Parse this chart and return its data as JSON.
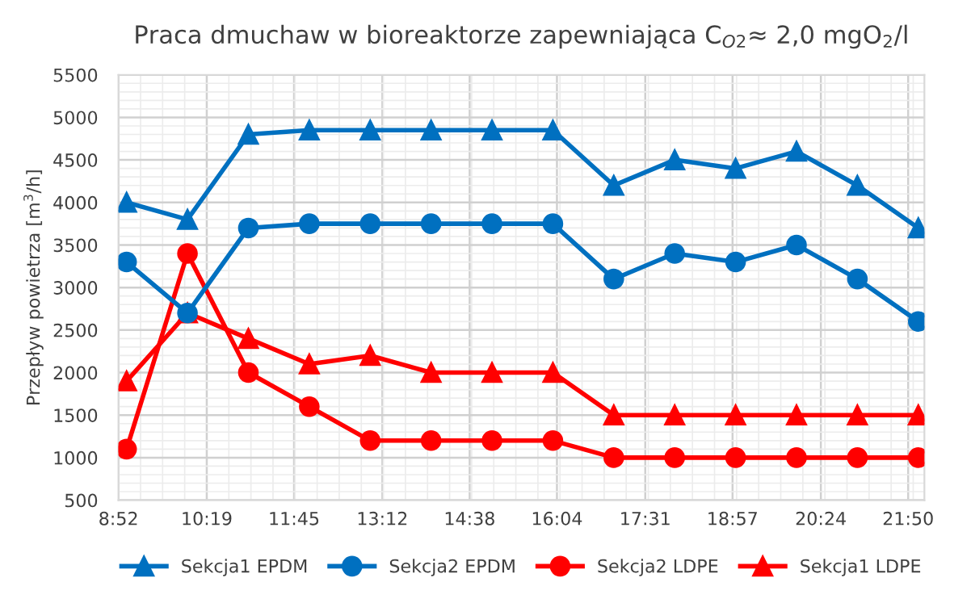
{
  "chart_data": {
    "type": "line",
    "title": "Praca dmuchaw w bioreaktorze zapewniająca C$_{O2}$≈ 2,0 mgO$_{2}$/l",
    "ylabel": "Przepływ powietrza [m$^{3}$/h]",
    "x": [
      9,
      10,
      11,
      12,
      13,
      14,
      15,
      16,
      17,
      18,
      19,
      20,
      21,
      22
    ],
    "xlim": [
      8.8667,
      22.1
    ],
    "xticks": [
      {
        "value": 8.8667,
        "label": "8:52"
      },
      {
        "value": 10.3167,
        "label": "10:19"
      },
      {
        "value": 11.75,
        "label": "11:45"
      },
      {
        "value": 13.2,
        "label": "13:12"
      },
      {
        "value": 14.6333,
        "label": "14:38"
      },
      {
        "value": 16.0667,
        "label": "16:04"
      },
      {
        "value": 17.5167,
        "label": "17:31"
      },
      {
        "value": 18.95,
        "label": "18:57"
      },
      {
        "value": 20.4,
        "label": "20:24"
      },
      {
        "value": 21.8333,
        "label": "21:50"
      }
    ],
    "ylim": [
      500,
      5500
    ],
    "yticks": [
      500,
      1000,
      1500,
      2000,
      2500,
      3000,
      3500,
      4000,
      4500,
      5000,
      5500
    ],
    "grid": true,
    "legend": "bottom",
    "series": [
      {
        "name": "Sekcja1 EPDM",
        "color": "#0070c0",
        "marker": "triangle",
        "values": [
          4000,
          3800,
          4800,
          4850,
          4850,
          4850,
          4850,
          4850,
          4200,
          4500,
          4400,
          4600,
          4200,
          3700
        ]
      },
      {
        "name": "Sekcja2 EPDM",
        "color": "#0070c0",
        "marker": "circle",
        "values": [
          3300,
          2700,
          3700,
          3750,
          3750,
          3750,
          3750,
          3750,
          3100,
          3400,
          3300,
          3500,
          3100,
          2600
        ]
      },
      {
        "name": "Sekcja2 LDPE",
        "color": "#ff0000",
        "marker": "circle",
        "values": [
          1100,
          3400,
          2000,
          1600,
          1200,
          1200,
          1200,
          1200,
          1000,
          1000,
          1000,
          1000,
          1000,
          1000
        ]
      },
      {
        "name": "Sekcja1 LDPE",
        "color": "#ff0000",
        "marker": "triangle",
        "values": [
          1900,
          2700,
          2400,
          2100,
          2200,
          2000,
          2000,
          2000,
          1500,
          1500,
          1500,
          1500,
          1500,
          1500
        ]
      }
    ]
  }
}
